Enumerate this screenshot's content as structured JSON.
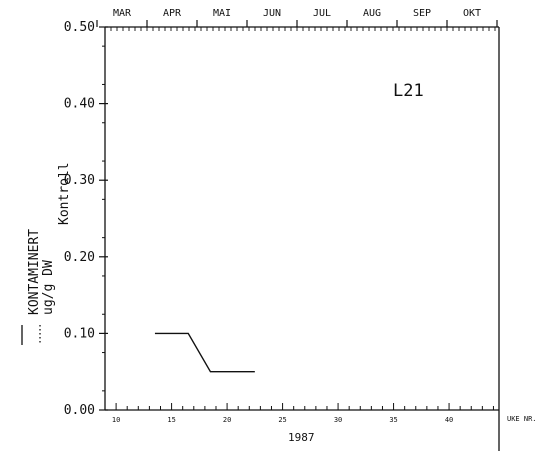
{
  "chart_data": {
    "type": "line",
    "panel_label": "L21",
    "months": [
      "MAR",
      "APR",
      "MAI",
      "JUN",
      "JUL",
      "AUG",
      "SEP",
      "OKT"
    ],
    "x_ticks": [
      10,
      15,
      20,
      25,
      30,
      35,
      40
    ],
    "x_tick_labels": [
      "10",
      "15",
      "20",
      "25",
      "30",
      "35",
      "40"
    ],
    "x_unit_label": "UKE NR.",
    "year_label": "1987",
    "xlim": [
      9,
      44.5
    ],
    "y_ticks": [
      0,
      0.1,
      0.2,
      0.3,
      0.4,
      0.5
    ],
    "y_tick_labels": [
      "0.00",
      "0.10",
      "0.20",
      "0.30",
      "0.40",
      "0.50"
    ],
    "ylim": [
      0,
      0.5
    ],
    "ylabel_lines": [
      "KONTAMINERT",
      "ug/g DW",
      "Kontroll"
    ],
    "series": [
      {
        "line_style": "solid",
        "x": [
          13.5,
          16.5,
          18.5,
          22.5
        ],
        "values": [
          0.1,
          0.1,
          0.05,
          0.05
        ]
      }
    ],
    "colors": {
      "ink": "#111111",
      "background": "#ffffff"
    }
  }
}
